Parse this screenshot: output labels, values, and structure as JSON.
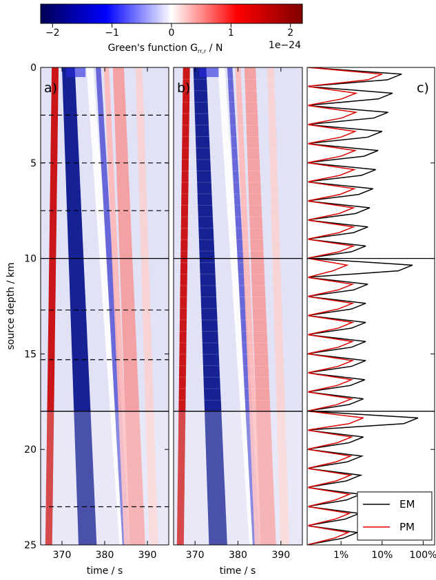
{
  "colorbar": {
    "label": "Green's function G",
    "label_sub": "rr,r",
    "label_unit": " / N",
    "exponent": "1e−24",
    "ticks": [
      "−2",
      "−1",
      "0",
      "1",
      "2"
    ],
    "range": [
      -2.2,
      2.2
    ],
    "colormap": "seismic"
  },
  "chart_data": {
    "type": "heatmap",
    "ylabel": "source depth / km",
    "ylim": [
      25,
      0
    ],
    "yticks": [
      "0",
      "5",
      "10",
      "15",
      "20",
      "25"
    ],
    "panels": [
      {
        "label": "a)",
        "xlabel": "time / s",
        "xlim": [
          365,
          395
        ],
        "xticks": [
          "370",
          "380",
          "390"
        ],
        "solid_lines_km": [
          10,
          18
        ],
        "dashed_lines_km": [
          2.5,
          5,
          7.5,
          12.7,
          15.3,
          23
        ]
      },
      {
        "label": "b)",
        "xlabel": "time / s",
        "xlim": [
          365,
          395
        ],
        "xticks": [
          "370",
          "380",
          "390"
        ],
        "solid_lines_km": [
          10,
          18
        ]
      },
      {
        "label": "c)",
        "type": "line",
        "xscale": "log",
        "xticks": [
          "1%",
          "10%",
          "100%"
        ],
        "solid_lines_km": [
          10,
          18
        ],
        "legend": {
          "placement": "lower-right",
          "entries": [
            "EM",
            "PM"
          ]
        },
        "series": [
          {
            "name": "EM",
            "color": "#000000",
            "depth_km": [
              0.3,
              1.3,
              2.3,
              3.3,
              4.3,
              5.3,
              6.3,
              7.3,
              8.3,
              9.3,
              10.3,
              11.3,
              12.3,
              13.3,
              14.3,
              15.3,
              16.3,
              17.3,
              18.3,
              19.3,
              20.3,
              21.3,
              22.3,
              23.3,
              24.3
            ],
            "peak_percent": [
              30,
              18,
              14,
              10,
              8,
              7,
              6,
              5,
              4.5,
              4,
              55,
              4.5,
              4,
              4,
              4,
              4,
              3.8,
              3.5,
              75,
              3.5,
              3.2,
              3,
              3,
              2.8,
              2.5
            ]
          },
          {
            "name": "PM",
            "color": "#dd0000",
            "depth_km": [
              0.3,
              1.3,
              2.3,
              3.3,
              4.3,
              5.3,
              6.3,
              7.3,
              8.3,
              9.3,
              10.3,
              11.3,
              12.3,
              13.3,
              14.3,
              15.3,
              16.3,
              17.3,
              18.3,
              19.3,
              20.3,
              21.3,
              22.3,
              23.3,
              24.3
            ],
            "peak_percent": [
              10,
              2.3,
              2.3,
              2.2,
              2.2,
              2.1,
              2.1,
              2,
              2,
              2,
              1.4,
              1.9,
              1.9,
              1.9,
              1.9,
              1.9,
              1.8,
              1.8,
              3.5,
              1.8,
              1.7,
              1.7,
              1.6,
              1.6,
              1.5
            ]
          }
        ]
      }
    ]
  }
}
